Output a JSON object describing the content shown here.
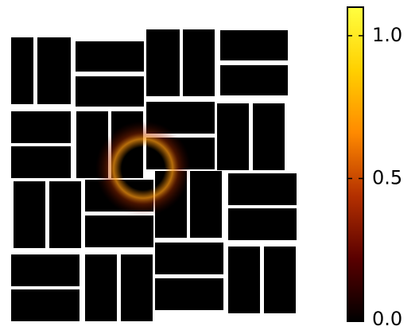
{
  "chart_data": {
    "type": "image",
    "colorbar": {
      "clim": [
        0,
        1.1
      ],
      "ticks": [
        {
          "value": 0,
          "label": "0.0"
        },
        {
          "value": 0.5,
          "label": "0.5"
        },
        {
          "value": 1,
          "label": "1.0"
        }
      ],
      "colors": [
        "#000000",
        "#5a0000",
        "#b43000",
        "#ff8a00",
        "#ffd000",
        "#ffff40"
      ]
    }
  }
}
